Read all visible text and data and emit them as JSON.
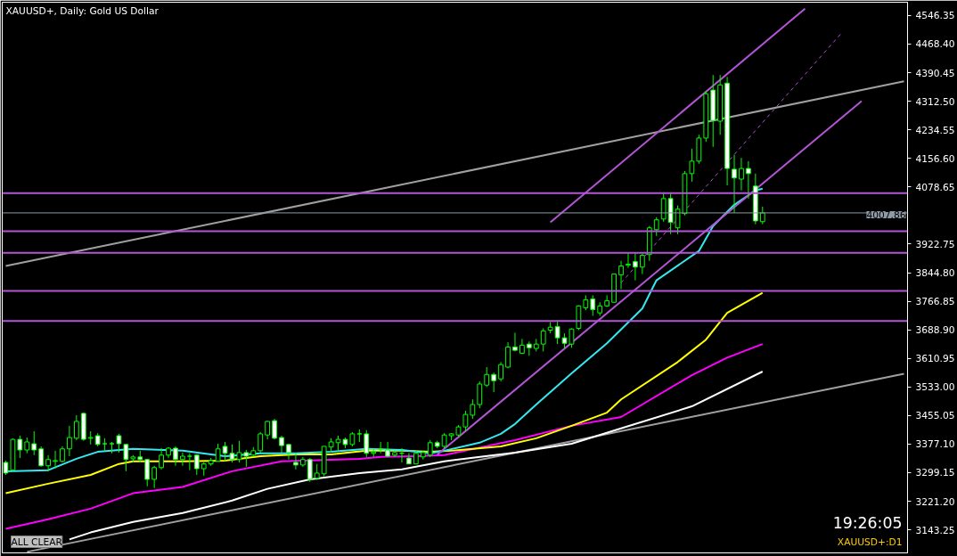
{
  "chart_data": {
    "type": "candlestick",
    "title": "XAUUSD+, Daily:  Gold US Dollar",
    "annotations": [
      "19:26:05",
      "XAUUSD+:D1",
      "ALL CLEAR"
    ],
    "categories": [
      null,
      null,
      null,
      null,
      null,
      null,
      null,
      null,
      null,
      null,
      null,
      null,
      null,
      null,
      null,
      null,
      null,
      null,
      null,
      null,
      null,
      null,
      null,
      null,
      null,
      null,
      null,
      null,
      null,
      null,
      null,
      null,
      null,
      null,
      null,
      null,
      null,
      null,
      null,
      null,
      null,
      null,
      null,
      null,
      null,
      null,
      null,
      null,
      null,
      null,
      null,
      null,
      null,
      null,
      null,
      null,
      null,
      null,
      null,
      null,
      null,
      null,
      null,
      null,
      null,
      null,
      null,
      null,
      null,
      null,
      null,
      null,
      null,
      null,
      null,
      null,
      null,
      null,
      null,
      null,
      null,
      null,
      null,
      null,
      null,
      null,
      null,
      null,
      null,
      null,
      null,
      null,
      null,
      null,
      null,
      null,
      null,
      null,
      null,
      null,
      null,
      null,
      null,
      null,
      null,
      null,
      null,
      null,
      null,
      null,
      null,
      null,
      null,
      null,
      null,
      null,
      null,
      null,
      null,
      null,
      null,
      null,
      null,
      null,
      null,
      null,
      null,
      null
    ],
    "ohlc": [
      [
        3327,
        3332,
        3293,
        3298
      ],
      [
        3306,
        3393,
        3303,
        3390
      ],
      [
        3390,
        3400,
        3339,
        3361
      ],
      [
        3361,
        3395,
        3352,
        3383
      ],
      [
        3378,
        3412,
        3347,
        3361
      ],
      [
        3364,
        3371,
        3315,
        3318
      ],
      [
        3318,
        3347,
        3303,
        3335
      ],
      [
        3330,
        3359,
        3310,
        3332
      ],
      [
        3330,
        3371,
        3327,
        3364
      ],
      [
        3364,
        3427,
        3344,
        3395
      ],
      [
        3393,
        3456,
        3388,
        3439
      ],
      [
        3461,
        3463,
        3386,
        3390
      ],
      [
        3393,
        3412,
        3376,
        3395
      ],
      [
        3400,
        3407,
        3371,
        3376
      ],
      [
        3378,
        3393,
        3359,
        3378
      ],
      [
        3378,
        3383,
        3352,
        3378
      ],
      [
        3400,
        3405,
        3354,
        3378
      ],
      [
        3376,
        3378,
        3303,
        3335
      ],
      [
        3337,
        3347,
        3327,
        3342
      ],
      [
        3342,
        3359,
        3327,
        3335
      ],
      [
        3335,
        3337,
        3262,
        3281
      ],
      [
        3281,
        3318,
        3257,
        3313
      ],
      [
        3313,
        3366,
        3308,
        3347
      ],
      [
        3347,
        3369,
        3339,
        3366
      ],
      [
        3366,
        3371,
        3318,
        3335
      ],
      [
        3335,
        3354,
        3318,
        3344
      ],
      [
        3344,
        3352,
        3306,
        3344
      ],
      [
        3347,
        3349,
        3293,
        3310
      ],
      [
        3310,
        3327,
        3291,
        3323
      ],
      [
        3323,
        3339,
        3318,
        3332
      ],
      [
        3330,
        3378,
        3330,
        3364
      ],
      [
        3371,
        3383,
        3330,
        3352
      ],
      [
        3352,
        3376,
        3327,
        3335
      ],
      [
        3335,
        3386,
        3327,
        3354
      ],
      [
        3354,
        3361,
        3315,
        3344
      ],
      [
        3347,
        3369,
        3342,
        3359
      ],
      [
        3359,
        3410,
        3354,
        3405
      ],
      [
        3402,
        3441,
        3390,
        3439
      ],
      [
        3441,
        3446,
        3390,
        3393
      ],
      [
        3395,
        3400,
        3354,
        3373
      ],
      [
        3376,
        3378,
        3335,
        3354
      ],
      [
        3327,
        3352,
        3308,
        3320
      ],
      [
        3320,
        3342,
        3315,
        3335
      ],
      [
        3335,
        3339,
        3274,
        3281
      ],
      [
        3284,
        3323,
        3279,
        3298
      ],
      [
        3296,
        3371,
        3289,
        3371
      ],
      [
        3369,
        3393,
        3354,
        3383
      ],
      [
        3381,
        3400,
        3359,
        3390
      ],
      [
        3390,
        3395,
        3366,
        3376
      ],
      [
        3376,
        3410,
        3371,
        3405
      ],
      [
        3405,
        3417,
        3383,
        3405
      ],
      [
        3405,
        3415,
        3342,
        3352
      ],
      [
        3352,
        3364,
        3342,
        3356
      ],
      [
        3364,
        3383,
        3352,
        3364
      ],
      [
        3361,
        3383,
        3342,
        3344
      ],
      [
        3347,
        3359,
        3342,
        3354
      ],
      [
        3352,
        3366,
        3327,
        3352
      ],
      [
        3339,
        3352,
        3323,
        3323
      ],
      [
        3323,
        3359,
        3323,
        3352
      ],
      [
        3342,
        3359,
        3335,
        3354
      ],
      [
        3347,
        3388,
        3342,
        3381
      ],
      [
        3381,
        3386,
        3366,
        3371
      ],
      [
        3371,
        3407,
        3366,
        3402
      ],
      [
        3400,
        3407,
        3388,
        3405
      ],
      [
        3402,
        3429,
        3398,
        3424
      ],
      [
        3424,
        3468,
        3412,
        3458
      ],
      [
        3456,
        3499,
        3446,
        3485
      ],
      [
        3485,
        3548,
        3475,
        3541
      ],
      [
        3538,
        3587,
        3533,
        3567
      ],
      [
        3567,
        3572,
        3519,
        3550
      ],
      [
        3555,
        3601,
        3548,
        3594
      ],
      [
        3587,
        3655,
        3584,
        3642
      ],
      [
        3642,
        3681,
        3630,
        3633
      ],
      [
        3625,
        3664,
        3623,
        3647
      ],
      [
        3650,
        3657,
        3618,
        3640
      ],
      [
        3638,
        3664,
        3630,
        3650
      ],
      [
        3650,
        3693,
        3630,
        3686
      ],
      [
        3688,
        3710,
        3679,
        3696
      ],
      [
        3698,
        3715,
        3650,
        3667
      ],
      [
        3667,
        3679,
        3638,
        3652
      ],
      [
        3650,
        3693,
        3640,
        3691
      ],
      [
        3693,
        3756,
        3688,
        3754
      ],
      [
        3749,
        3783,
        3742,
        3771
      ],
      [
        3773,
        3783,
        3727,
        3744
      ],
      [
        3735,
        3764,
        3727,
        3754
      ],
      [
        3754,
        3783,
        3751,
        3768
      ],
      [
        3764,
        3841,
        3764,
        3841
      ],
      [
        3839,
        3877,
        3800,
        3863
      ],
      [
        3865,
        3899,
        3858,
        3868
      ],
      [
        3875,
        3899,
        3824,
        3860
      ],
      [
        3860,
        3897,
        3841,
        3892
      ],
      [
        3894,
        3972,
        3877,
        3967
      ],
      [
        3962,
        3996,
        3945,
        3989
      ],
      [
        3991,
        4064,
        3984,
        4047
      ],
      [
        4047,
        4064,
        3950,
        3982
      ],
      [
        3967,
        4028,
        3950,
        4018
      ],
      [
        4006,
        4122,
        4001,
        4115
      ],
      [
        4115,
        4183,
        4093,
        4149
      ],
      [
        4149,
        4221,
        4142,
        4212
      ],
      [
        4212,
        4340,
        4202,
        4333
      ],
      [
        4343,
        4384,
        4188,
        4260
      ],
      [
        4258,
        4384,
        4221,
        4357
      ],
      [
        4362,
        4379,
        4083,
        4129
      ],
      [
        4127,
        4166,
        4008,
        4103
      ],
      [
        4100,
        4158,
        4069,
        4129
      ],
      [
        4129,
        4149,
        4047,
        4115
      ],
      [
        4081,
        4115,
        3977,
        3986
      ],
      [
        3984,
        4025,
        3977,
        4007.86
      ],
      null,
      null,
      null,
      null,
      null,
      null,
      null,
      null,
      null,
      null,
      null,
      null,
      null,
      null,
      null,
      null,
      null,
      null,
      null,
      null
    ],
    "series": [
      {
        "type": "line",
        "color": "#a0a0a0",
        "values": [
          3863,
          null,
          null,
          null,
          null,
          null,
          null,
          null,
          null,
          null,
          null,
          null,
          null,
          null,
          null,
          null,
          null,
          null,
          null,
          null,
          null,
          null,
          null,
          null,
          null,
          null,
          null,
          null,
          null,
          null,
          null,
          null,
          null,
          null,
          null,
          null,
          null,
          null,
          null,
          null,
          null,
          null,
          null,
          null,
          null,
          null,
          null,
          null,
          null,
          null,
          null,
          null,
          null,
          null,
          null,
          null,
          null,
          null,
          null,
          null,
          null,
          null,
          null,
          null,
          null,
          null,
          null,
          null,
          null,
          null,
          null,
          null,
          null,
          null,
          null,
          null,
          null,
          null,
          null,
          null,
          null,
          null,
          null,
          null,
          null,
          null,
          null,
          null,
          null,
          null,
          null,
          null,
          null,
          null,
          null,
          null,
          null,
          null,
          null,
          null,
          null,
          null,
          null,
          null,
          null,
          null,
          null,
          null,
          null,
          null,
          null,
          null,
          null,
          null,
          null,
          null,
          null,
          null,
          null,
          null,
          null,
          null,
          null,
          null,
          null,
          null,
          null,
          4367
        ]
      },
      {
        "type": "line",
        "color": "#a0a0a0",
        "values": [
          null,
          null,
          null,
          3083,
          null,
          null,
          null,
          null,
          null,
          null,
          null,
          null,
          null,
          null,
          null,
          null,
          null,
          null,
          null,
          null,
          null,
          null,
          null,
          null,
          null,
          null,
          null,
          null,
          null,
          null,
          null,
          null,
          null,
          null,
          null,
          null,
          null,
          null,
          null,
          null,
          null,
          null,
          null,
          null,
          null,
          null,
          null,
          null,
          null,
          null,
          null,
          null,
          null,
          null,
          null,
          null,
          null,
          null,
          null,
          null,
          null,
          null,
          null,
          null,
          null,
          null,
          null,
          null,
          null,
          null,
          null,
          null,
          null,
          null,
          null,
          null,
          null,
          null,
          null,
          null,
          null,
          null,
          null,
          null,
          null,
          null,
          null,
          null,
          null,
          null,
          null,
          null,
          null,
          null,
          null,
          null,
          null,
          null,
          null,
          null,
          null,
          null,
          null,
          null,
          null,
          null,
          null,
          null,
          null,
          null,
          null,
          null,
          null,
          null,
          null,
          null,
          null,
          null,
          null,
          null,
          null,
          null,
          null,
          null,
          null,
          null,
          null,
          3569
        ]
      },
      {
        "type": "line",
        "color": "#ffffff",
        "values": [
          null,
          null,
          null,
          null,
          null,
          null,
          null,
          null,
          null,
          3117,
          null,
          null,
          3136,
          null,
          null,
          null,
          null,
          null,
          3165,
          null,
          null,
          null,
          null,
          null,
          null,
          3189,
          null,
          null,
          null,
          null,
          null,
          null,
          3223,
          null,
          null,
          null,
          null,
          3255,
          null,
          null,
          null,
          null,
          null,
          3281,
          null,
          null,
          null,
          null,
          null,
          null,
          3298,
          null,
          null,
          null,
          null,
          null,
          3308,
          null,
          null,
          null,
          null,
          null,
          3330,
          null,
          null,
          null,
          null,
          null,
          null,
          null,
          null,
          null,
          3354,
          null,
          null,
          null,
          null,
          null,
          null,
          null,
          3378,
          null,
          null,
          null,
          null,
          null,
          null,
          3420,
          null,
          null,
          null,
          null,
          null,
          null,
          null,
          null,
          null,
          3480,
          null,
          null,
          null,
          null,
          null,
          null,
          null,
          null,
          null,
          3575,
          null,
          null,
          null,
          null,
          null,
          null,
          null,
          null,
          null,
          null,
          null,
          null,
          null,
          null,
          null,
          null,
          null,
          null,
          null,
          null
        ]
      },
      {
        "type": "line",
        "color": "#ff00ff",
        "values": [
          3146,
          null,
          null,
          null,
          null,
          null,
          3172,
          null,
          null,
          null,
          null,
          null,
          3201,
          null,
          null,
          null,
          null,
          null,
          3243,
          null,
          null,
          null,
          null,
          null,
          null,
          3260,
          null,
          null,
          null,
          null,
          null,
          null,
          3303,
          null,
          null,
          null,
          null,
          null,
          null,
          3330,
          null,
          null,
          null,
          null,
          null,
          null,
          null,
          null,
          null,
          null,
          3337,
          null,
          null,
          3342,
          null,
          null,
          null,
          null,
          3344,
          null,
          null,
          null,
          3347,
          null,
          null,
          null,
          null,
          null,
          null,
          null,
          null,
          null,
          3388,
          null,
          null,
          null,
          null,
          null,
          null,
          null,
          3427,
          null,
          null,
          null,
          null,
          null,
          null,
          3451,
          null,
          null,
          null,
          null,
          null,
          null,
          null,
          null,
          null,
          3565,
          null,
          null,
          null,
          null,
          3613,
          null,
          null,
          null,
          null,
          3650,
          null,
          null,
          null,
          null,
          null,
          null,
          null,
          null,
          null,
          null,
          null,
          null,
          null,
          null,
          null,
          null,
          null,
          null,
          null,
          null
        ]
      },
      {
        "type": "line",
        "color": "#ffff00",
        "values": [
          3243,
          null,
          null,
          null,
          null,
          null,
          3269,
          null,
          null,
          null,
          null,
          null,
          3293,
          null,
          null,
          null,
          3323,
          null,
          3330,
          null,
          null,
          null,
          null,
          null,
          null,
          3330,
          null,
          null,
          null,
          null,
          null,
          3332,
          null,
          null,
          null,
          null,
          3344,
          null,
          null,
          null,
          null,
          3349,
          null,
          null,
          null,
          null,
          3349,
          null,
          null,
          null,
          null,
          3359,
          null,
          null,
          null,
          null,
          3359,
          null,
          null,
          null,
          3356,
          null,
          null,
          3359,
          null,
          null,
          null,
          null,
          null,
          null,
          3371,
          null,
          null,
          null,
          null,
          3393,
          null,
          null,
          null,
          null,
          3427,
          null,
          null,
          null,
          null,
          3463,
          null,
          3499,
          null,
          null,
          null,
          null,
          null,
          null,
          null,
          3601,
          null,
          null,
          null,
          3662,
          null,
          null,
          3735,
          null,
          null,
          null,
          null,
          3790,
          null,
          null,
          null,
          null,
          null,
          null,
          null,
          null,
          null,
          null,
          null,
          null,
          null,
          null,
          null,
          null,
          null,
          null,
          null,
          null
        ]
      },
      {
        "type": "line",
        "color": "#33e8f0",
        "values": [
          3303,
          null,
          null,
          null,
          null,
          null,
          3306,
          null,
          null,
          null,
          3337,
          null,
          null,
          3356,
          null,
          null,
          null,
          null,
          3364,
          null,
          null,
          null,
          null,
          null,
          null,
          3359,
          null,
          null,
          null,
          null,
          null,
          3344,
          null,
          null,
          null,
          null,
          3352,
          null,
          null,
          null,
          null,
          3352,
          null,
          null,
          null,
          null,
          3356,
          null,
          null,
          null,
          null,
          3364,
          null,
          null,
          null,
          null,
          3361,
          null,
          null,
          null,
          3352,
          null,
          3359,
          null,
          null,
          null,
          null,
          3381,
          null,
          null,
          3405,
          null,
          3432,
          null,
          null,
          3485,
          null,
          null,
          null,
          null,
          3570,
          null,
          null,
          null,
          null,
          3652,
          null,
          null,
          null,
          null,
          3747,
          null,
          3824,
          null,
          null,
          null,
          null,
          null,
          3904,
          null,
          3972,
          null,
          null,
          4030,
          null,
          null,
          4069,
          4074,
          null,
          null,
          null,
          null,
          null,
          null,
          null,
          null,
          null,
          null,
          null,
          null,
          null,
          null,
          null,
          null,
          null,
          null,
          null,
          null
        ]
      },
      {
        "type": "line",
        "color": "#b455d6",
        "values": [
          null,
          null,
          null,
          null,
          null,
          null,
          null,
          null,
          null,
          null,
          null,
          null,
          null,
          null,
          null,
          null,
          null,
          null,
          null,
          null,
          null,
          null,
          null,
          null,
          null,
          null,
          null,
          null,
          null,
          null,
          null,
          null,
          null,
          null,
          null,
          null,
          null,
          null,
          null,
          null,
          null,
          null,
          null,
          null,
          null,
          null,
          null,
          null,
          null,
          null,
          null,
          null,
          null,
          null,
          null,
          null,
          null,
          null,
          null,
          null,
          null,
          null,
          null,
          null,
          null,
          null,
          null,
          null,
          null,
          null,
          null,
          null,
          null,
          null,
          null,
          null,
          null,
          3982,
          null,
          null,
          null,
          null,
          null,
          null,
          null,
          null,
          null,
          null,
          null,
          null,
          null,
          null,
          null,
          null,
          null,
          null,
          null,
          null,
          null,
          null,
          null,
          null,
          null,
          null,
          null,
          null,
          null,
          null,
          null,
          null,
          null,
          null,
          null,
          4565,
          null,
          null,
          null,
          null,
          null,
          null,
          null,
          null,
          null,
          null,
          null,
          null,
          null,
          null
        ]
      },
      {
        "type": "line",
        "color": "#b455d6",
        "values": [
          null,
          null,
          null,
          null,
          null,
          null,
          null,
          null,
          null,
          null,
          null,
          null,
          null,
          null,
          null,
          null,
          null,
          null,
          null,
          null,
          null,
          null,
          null,
          null,
          null,
          null,
          null,
          null,
          null,
          null,
          null,
          null,
          null,
          null,
          null,
          null,
          null,
          null,
          null,
          null,
          null,
          null,
          null,
          null,
          null,
          null,
          null,
          null,
          null,
          null,
          null,
          null,
          null,
          null,
          null,
          null,
          null,
          null,
          null,
          null,
          null,
          3348,
          null,
          null,
          null,
          null,
          null,
          null,
          null,
          null,
          null,
          null,
          null,
          null,
          null,
          null,
          null,
          null,
          null,
          null,
          null,
          null,
          null,
          null,
          null,
          null,
          null,
          null,
          null,
          null,
          null,
          null,
          null,
          null,
          null,
          null,
          null,
          null,
          null,
          null,
          null,
          null,
          null,
          null,
          null,
          null,
          null,
          null,
          null,
          null,
          null,
          null,
          null,
          null,
          null,
          null,
          null,
          null,
          null,
          null,
          null,
          4313,
          null,
          null,
          null,
          null,
          null,
          null
        ]
      },
      {
        "type": "line",
        "color": "#b455d6",
        "line_style": "dashed",
        "values": [
          null,
          null,
          null,
          null,
          null,
          null,
          null,
          null,
          null,
          null,
          null,
          null,
          null,
          null,
          null,
          null,
          null,
          null,
          null,
          null,
          null,
          null,
          null,
          null,
          null,
          null,
          null,
          null,
          null,
          null,
          null,
          null,
          null,
          null,
          null,
          null,
          null,
          null,
          null,
          null,
          null,
          null,
          null,
          null,
          null,
          null,
          null,
          null,
          null,
          null,
          null,
          null,
          null,
          null,
          null,
          null,
          null,
          null,
          null,
          null,
          null,
          null,
          null,
          null,
          null,
          null,
          null,
          null,
          null,
          null,
          null,
          null,
          null,
          null,
          null,
          null,
          null,
          null,
          null,
          null,
          null,
          null,
          null,
          null,
          null,
          null,
          null,
          3817,
          null,
          null,
          null,
          null,
          null,
          null,
          null,
          null,
          null,
          null,
          null,
          null,
          null,
          null,
          null,
          null,
          null,
          null,
          null,
          null,
          null,
          null,
          null,
          null,
          null,
          null,
          null,
          null,
          null,
          null,
          4495,
          null,
          null,
          null,
          null,
          null,
          null,
          null,
          null,
          null
        ]
      }
    ],
    "ref_lines": [
      {
        "axis": "y",
        "value": 4062,
        "color": "#b455d6"
      },
      {
        "axis": "y",
        "value": 4007.86,
        "label": "4007.86",
        "color": "#8e9aa6"
      },
      {
        "axis": "y",
        "value": 3958,
        "color": "#b455d6"
      },
      {
        "axis": "y",
        "value": 3899,
        "color": "#b455d6"
      },
      {
        "axis": "y",
        "value": 3795,
        "color": "#b455d6"
      },
      {
        "axis": "y",
        "value": 3713,
        "color": "#b455d6"
      }
    ],
    "ylim": [
      3080.3,
      4582.6
    ],
    "yticks": [
      {
        "value": 4546.35,
        "label": "4546.35"
      },
      {
        "value": 4468.4,
        "label": "4468.40"
      },
      {
        "value": 4390.45,
        "label": "4390.45"
      },
      {
        "value": 4312.5,
        "label": "4312.50"
      },
      {
        "value": 4234.55,
        "label": "4234.55"
      },
      {
        "value": 4156.6,
        "label": "4156.60"
      },
      {
        "value": 4078.65,
        "label": "4078.65"
      },
      {
        "value": 3922.75,
        "label": "3922.75"
      },
      {
        "value": 3844.8,
        "label": "3844.80"
      },
      {
        "value": 3766.85,
        "label": "3766.85"
      },
      {
        "value": 3688.9,
        "label": "3688.90"
      },
      {
        "value": 3610.95,
        "label": "3610.95"
      },
      {
        "value": 3533.0,
        "label": "3533.00"
      },
      {
        "value": 3455.05,
        "label": "3455.05"
      },
      {
        "value": 3377.1,
        "label": "3377.10"
      },
      {
        "value": 3299.15,
        "label": "3299.15"
      },
      {
        "value": 3221.2,
        "label": "3221.20"
      },
      {
        "value": 3143.25,
        "label": "3143.25"
      }
    ],
    "tick_labels": "y",
    "grid": false
  }
}
